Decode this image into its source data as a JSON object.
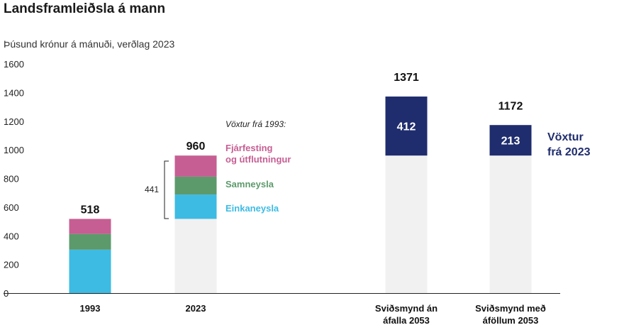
{
  "chart_data": {
    "type": "bar",
    "title": "Landsframleiðsla á mann",
    "subtitle": "Þúsund krónur á mánuði, verðlag 2023",
    "ylim": [
      0,
      1600
    ],
    "yticks": [
      "0",
      "200",
      "400",
      "600",
      "800",
      "1000",
      "1200",
      "1400",
      "1600"
    ],
    "grid": false,
    "categories": [
      "1993",
      "2023",
      "Sviðsmynd án áfalla 2053",
      "Sviðsmynd með áföllum 2053"
    ],
    "category_lines": [
      [
        "1993"
      ],
      [
        "2023"
      ],
      [
        "Sviðsmynd án",
        "áfalla 2053"
      ],
      [
        "Sviðsmynd með",
        "áföllum 2053"
      ]
    ],
    "totals": [
      "518",
      "960",
      "1371",
      "1172"
    ],
    "bars": [
      {
        "category": "1993",
        "total": 518,
        "segments": [
          {
            "series": "Einkaneysla",
            "value": 303
          },
          {
            "series": "Samneysla",
            "value": 110
          },
          {
            "series": "Fjárfesting og útflutningur",
            "value": 105
          }
        ]
      },
      {
        "category": "2023",
        "total": 960,
        "segments": [
          {
            "series": "1993 level",
            "value": 518
          },
          {
            "series": "Einkaneysla",
            "value": 170
          },
          {
            "series": "Samneysla",
            "value": 125
          },
          {
            "series": "Fjárfesting og útflutningur",
            "value": 147
          }
        ]
      },
      {
        "category": "Sviðsmynd án áfalla 2053",
        "total": 1371,
        "segments": [
          {
            "series": "2023 level",
            "value": 960
          },
          {
            "series": "Vöxtur frá 2023",
            "value": 412,
            "label": "412"
          }
        ]
      },
      {
        "category": "Sviðsmynd með áföllum 2053",
        "total": 1172,
        "segments": [
          {
            "series": "2023 level",
            "value": 960
          },
          {
            "series": "Vöxtur frá 2023",
            "value": 213,
            "label": "213"
          }
        ]
      }
    ],
    "colors": {
      "Einkaneysla": "#3dbbe3",
      "Samneysla": "#5c9a6b",
      "Fjárfesting og útflutningur": "#c65e93",
      "base": "#f1f1f1",
      "growth": "#1f2d6e"
    },
    "annotations": {
      "growth_since_1993_title": "Vöxtur frá 1993:",
      "growth_since_1993_value": "441",
      "label_fjarfesting_line1": "Fjárfesting",
      "label_fjarfesting_line2": "og útflutningur",
      "label_samneysla": "Samneysla",
      "label_einkaneysla": "Einkaneysla",
      "growth_2023_line1": "Vöxtur",
      "growth_2023_line2": "frá 2023"
    }
  }
}
